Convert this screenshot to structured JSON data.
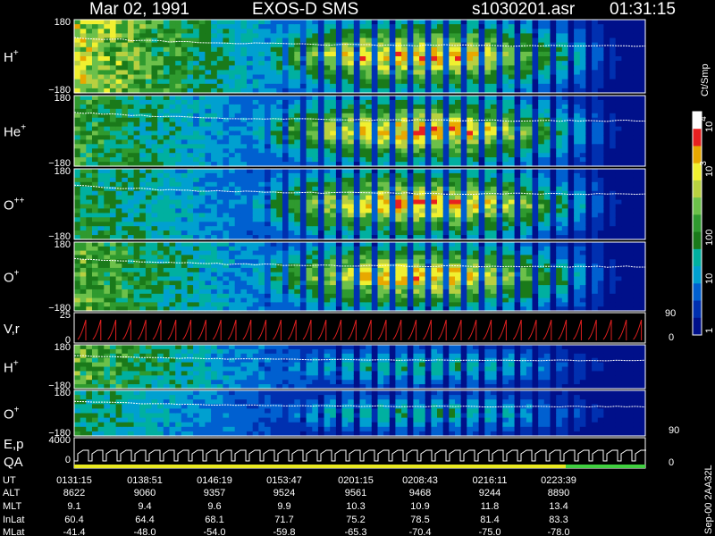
{
  "header": {
    "date": "Mar 02, 1991",
    "instrument": "EXOS-D SMS",
    "file": "s1030201.asr",
    "time": "01:31:15"
  },
  "panels": [
    {
      "label": "H",
      "sup": "+",
      "ytop": "180",
      "ybottom": "−180"
    },
    {
      "label": "He",
      "sup": "+",
      "ytop": "180",
      "ybottom": "−180"
    },
    {
      "label": "O",
      "sup": "++",
      "ytop": "180",
      "ybottom": "−180"
    },
    {
      "label": "O",
      "sup": "+",
      "ytop": "180",
      "ybottom": "−180"
    },
    {
      "label": "V,r",
      "ytop": "25",
      "ybottom": "0",
      "rtop": "90",
      "rbottom": "0"
    },
    {
      "label": "H",
      "sup": "+",
      "ytop": "180",
      "ybottom": "−180"
    },
    {
      "label": "O",
      "sup": "+",
      "ytop": "180",
      "ybottom": "−180",
      "rbottom": "90"
    },
    {
      "label": "E,p",
      "label2": "QA",
      "ytop": "4000",
      "ybottom": "0",
      "rbottom": "0"
    }
  ],
  "colorbar": {
    "unit": "Ct/Smp",
    "ticks": [
      {
        "base": "10",
        "sup": "4"
      },
      {
        "base": "10",
        "sup": "3"
      },
      {
        "base": "100"
      },
      {
        "base": "10"
      },
      {
        "base": "1"
      }
    ]
  },
  "side_note": "Sep-00 2AA32L",
  "table": {
    "rows": [
      {
        "label": "UT",
        "values": [
          "0131:15",
          "0138:51",
          "0146:19",
          "0153:47",
          "0201:15",
          "0208:43",
          "0216:11",
          "0223:39"
        ]
      },
      {
        "label": "ALT",
        "values": [
          "8622",
          "9060",
          "9357",
          "9524",
          "9561",
          "9468",
          "9244",
          "8890"
        ]
      },
      {
        "label": "MLT",
        "values": [
          "9.1",
          "9.4",
          "9.6",
          "9.9",
          "10.3",
          "10.9",
          "11.8",
          "13.4"
        ]
      },
      {
        "label": "InLat",
        "values": [
          "60.4",
          "64.4",
          "68.1",
          "71.7",
          "75.2",
          "78.5",
          "81.4",
          "83.3"
        ]
      },
      {
        "label": "MLat",
        "values": [
          "-41.4",
          "-48.0",
          "-54.0",
          "-59.8",
          "-65.3",
          "-70.4",
          "-75.0",
          "-78.0"
        ]
      }
    ]
  }
}
